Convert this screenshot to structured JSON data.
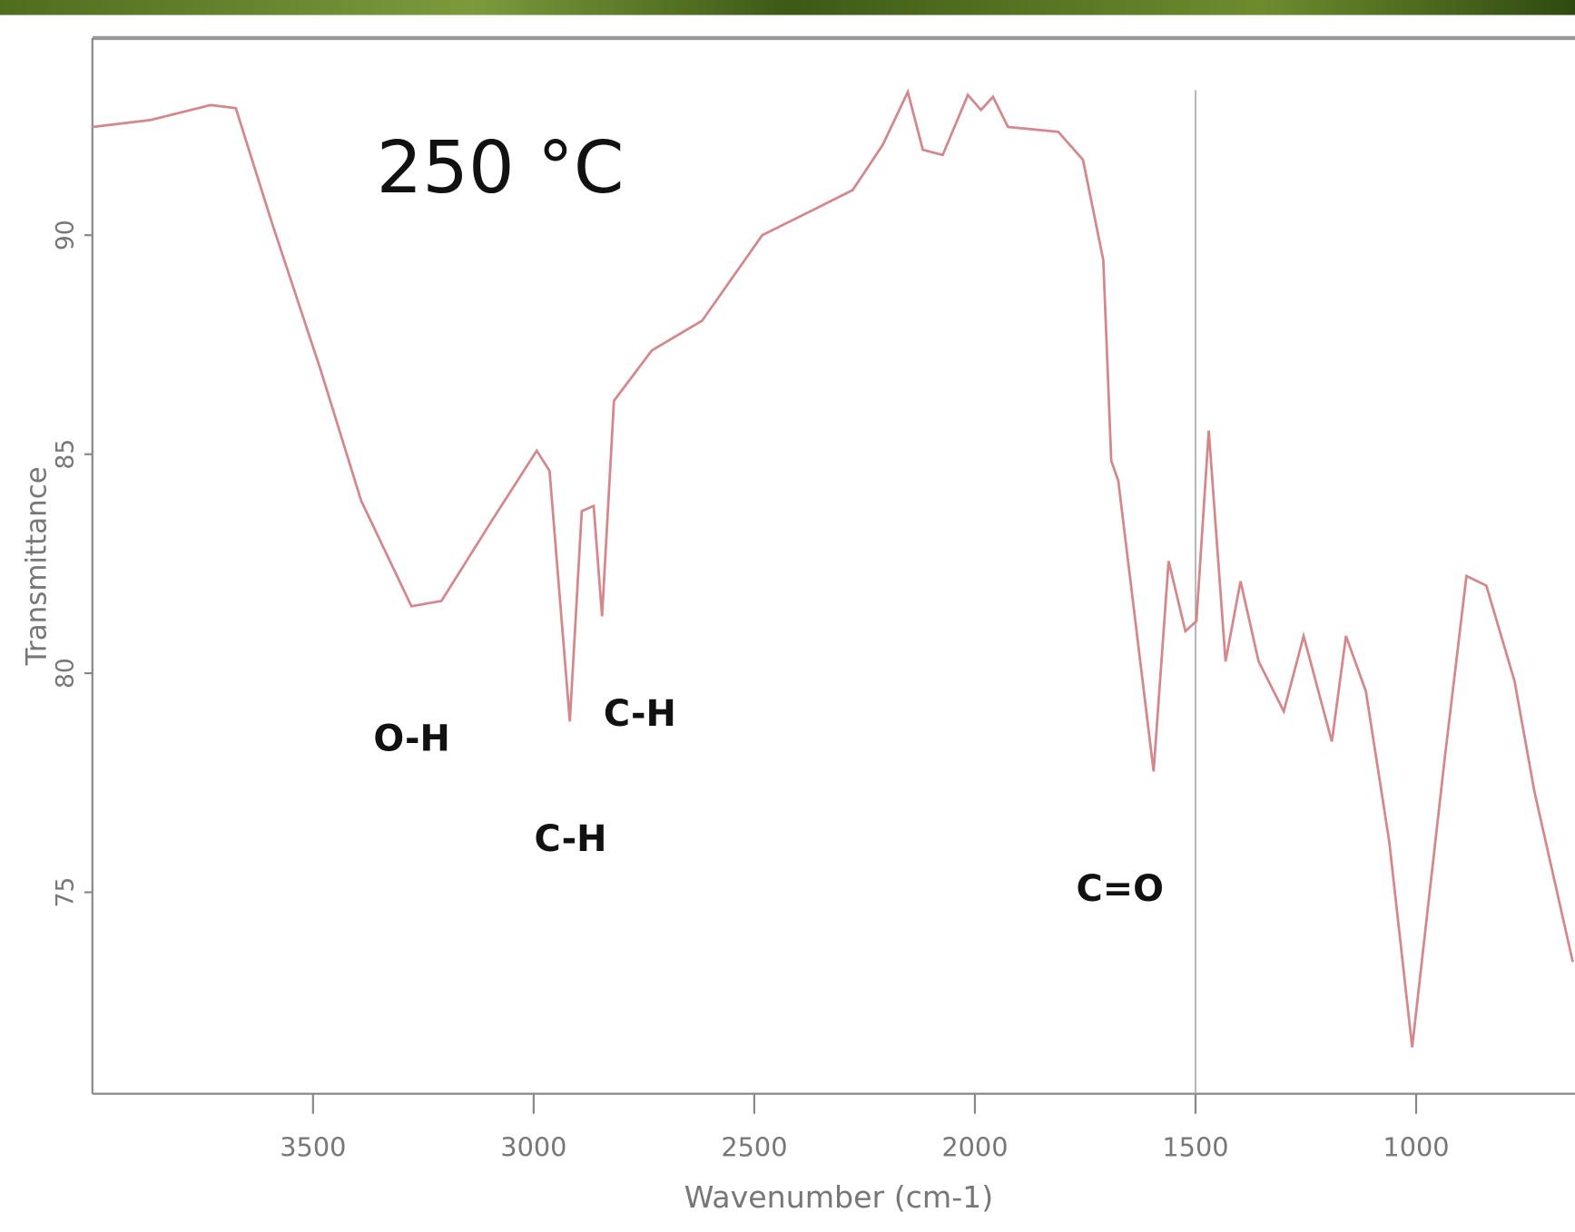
{
  "chart_data": {
    "type": "line",
    "title": "250 °C",
    "x_label": "Wavenumber (cm-1)",
    "y_label": "Transmittance",
    "annotations": [
      "O-H",
      "C-H",
      "C-H",
      "C=O"
    ],
    "x": [
      4000,
      3868,
      3732,
      3675,
      3595,
      3482,
      3391,
      3277,
      3209,
      3095,
      2993,
      2964,
      2918,
      2891,
      2864,
      2845,
      2818,
      2732,
      2618,
      2482,
      2368,
      2277,
      2209,
      2152,
      2118,
      2073,
      2016,
      1986,
      1959,
      1925,
      1811,
      1755,
      1709,
      1691,
      1675,
      1595,
      1561,
      1523,
      1498,
      1470,
      1432,
      1398,
      1357,
      1300,
      1255,
      1191,
      1159,
      1114,
      1061,
      1009,
      936,
      886,
      841,
      777,
      732,
      645
    ],
    "series": [
      {
        "color": "#d4888c",
        "values": [
          92.47,
          92.63,
          92.97,
          92.9,
          90.34,
          86.9,
          83.94,
          81.53,
          81.65,
          83.48,
          85.08,
          84.62,
          78.9,
          83.7,
          83.82,
          81.3,
          86.22,
          87.37,
          88.05,
          90.0,
          90.57,
          91.03,
          92.06,
          93.27,
          91.95,
          91.83,
          93.2,
          92.86,
          93.16,
          92.47,
          92.36,
          91.72,
          89.43,
          84.85,
          84.39,
          77.76,
          82.56,
          80.96,
          81.19,
          85.54,
          80.27,
          82.1,
          80.27,
          79.13,
          80.85,
          78.44,
          80.85,
          79.59,
          76.16,
          71.46,
          77.99,
          82.22,
          82.0,
          79.82,
          77.3,
          73.41
        ]
      }
    ],
    "xlim": [
      4000,
      640
    ],
    "xticks": [
      3500,
      3000,
      2500,
      2000,
      1500,
      1000
    ],
    "ylim": [
      70.4,
      94.5
    ],
    "yticks": [
      90,
      85,
      80,
      75
    ],
    "vline": 1500
  }
}
